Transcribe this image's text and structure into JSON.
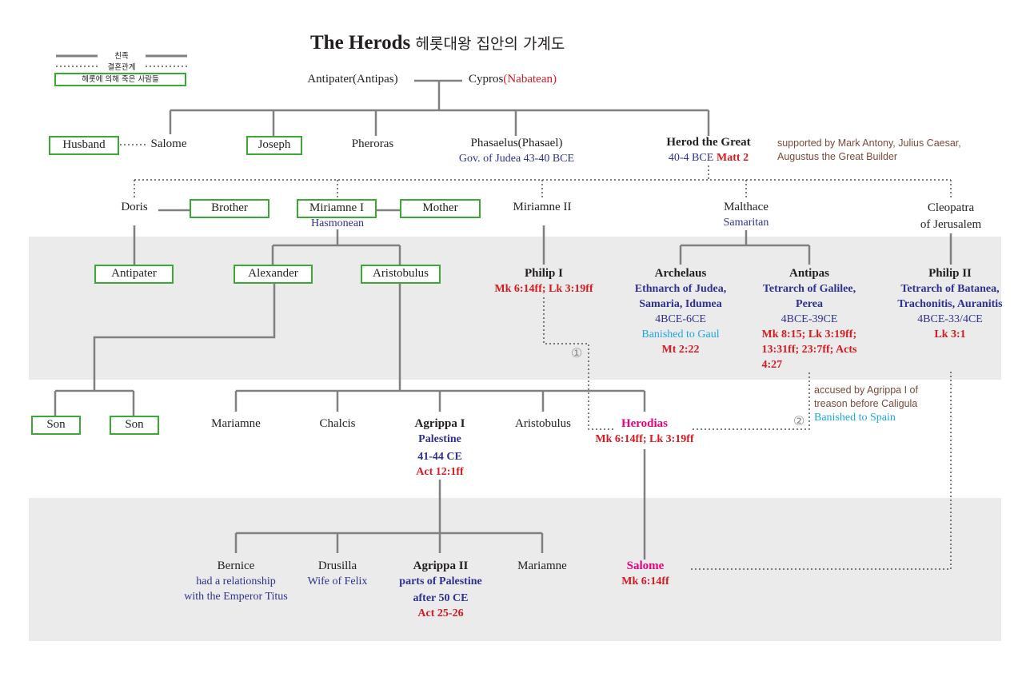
{
  "title": {
    "main": "The Herods",
    "korean": "헤롯대왕 집안의 가계도"
  },
  "legend": {
    "kin": "친족",
    "marriage": "결혼관계",
    "killed": "헤롯에 의해 죽은 사람들"
  },
  "colors": {
    "line": "#808080",
    "killed_box": "#3aaa35",
    "band": "#ebebeb",
    "office": "#2e3192",
    "reference": "#d71920",
    "fate": "#1ea7e1",
    "women": "#e6007e",
    "note": "#7b4a3a"
  },
  "gen1": {
    "antipater": "Antipater(Antipas)",
    "cypros": "Cypros",
    "cypros_origin": "(Nabatean)"
  },
  "gen2": {
    "husband": "Husband",
    "salome": "Salome",
    "joseph": "Joseph",
    "pheroras": "Pheroras",
    "phasaelus": "Phasaelus(Phasael)",
    "phasaelus_office": "Gov. of Judea 43-40 BCE",
    "herod": "Herod the Great",
    "herod_dates": "40-4 BCE",
    "herod_ref": "Matt 2",
    "herod_note": [
      "supported by Mark Antony, Julius Caesar,",
      "Augustus the Great Builder"
    ]
  },
  "wives": {
    "doris": "Doris",
    "brother": "Brother",
    "miriamne1": "Miriamne I",
    "miriamne1_origin": "Hasmonean",
    "mother": "Mother",
    "miriamne2": "Miriamne II",
    "malthace": "Malthace",
    "malthace_origin": "Samaritan",
    "cleopatra": [
      "Cleopatra",
      "of Jerusalem"
    ]
  },
  "sons": {
    "antipater": "Antipater",
    "alexander": "Alexander",
    "aristobulus": "Aristobulus",
    "philip1": "Philip I",
    "philip1_ref": "Mk 6:14ff; Lk 3:19ff",
    "archelaus": "Archelaus",
    "archelaus_office": [
      "Ethnarch of Judea,",
      "Samaria, Idumea",
      "4BCE-6CE"
    ],
    "archelaus_fate": "Banished to Gaul",
    "archelaus_ref": "Mt 2:22",
    "antipas": "Antipas",
    "antipas_office": [
      "Tetrarch of Galilee,",
      "Perea",
      "4BCE-39CE"
    ],
    "antipas_ref": [
      "Mk  8:15;  Lk  3:19ff;",
      "13:31ff;  23:7ff;  Acts",
      "4:27"
    ],
    "philip2": "Philip II",
    "philip2_office": [
      "Tetrarch of Batanea,",
      "Trachonitis, Auranitis",
      "4BCE-33/4CE"
    ],
    "philip2_ref": "Lk 3:1"
  },
  "marks": {
    "one": "①",
    "two": "②"
  },
  "antipas_note": [
    "accused by Agrippa I of",
    "treason before Caligula"
  ],
  "antipas_fate": "Banished to Spain",
  "grandchildren": {
    "son1": "Son",
    "son2": "Son",
    "mariamne": "Mariamne",
    "chalcis": "Chalcis",
    "agrippa1": "Agrippa I",
    "agrippa1_office": "Palestine",
    "agrippa1_dates": "41-44 CE",
    "agrippa1_ref": "Act 12:1ff",
    "aristobulus": "Aristobulus",
    "herodias": "Herodias",
    "herodias_ref": "Mk 6:14ff; Lk 3:19ff"
  },
  "great_grandchildren": {
    "bernice": "Bernice",
    "bernice_note": [
      "had a relationship",
      "with the Emperor Titus"
    ],
    "drusilla": "Drusilla",
    "drusilla_note": "Wife of Felix",
    "agrippa2": "Agrippa II",
    "agrippa2_office": "parts of Palestine",
    "agrippa2_dates": "after 50 CE",
    "agrippa2_ref": "Act 25-26",
    "mariamne": "Mariamne",
    "salome": "Salome",
    "salome_ref": "Mk 6:14ff"
  }
}
